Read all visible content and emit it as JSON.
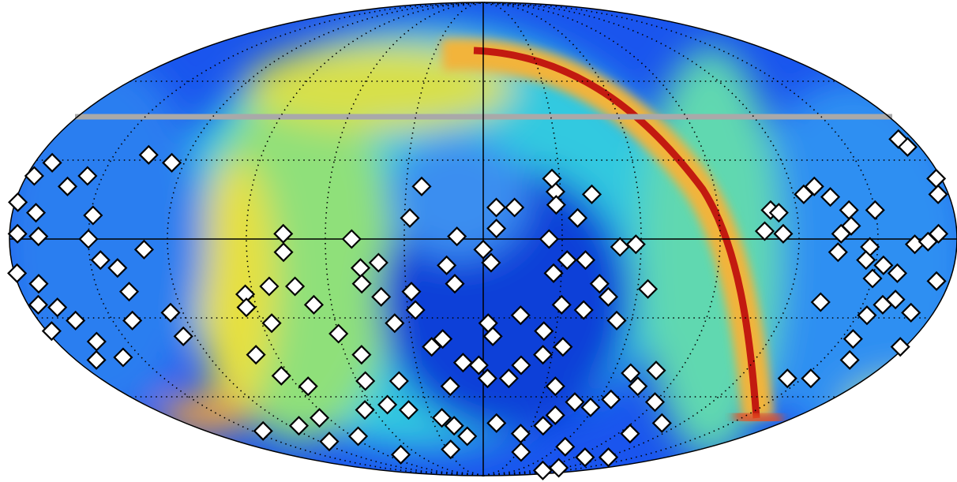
{
  "chart_data": {
    "type": "scatter",
    "x": [
      -173,
      -177,
      -179,
      -171,
      -177,
      -169,
      -179,
      -172,
      -176,
      -169,
      -178,
      -165,
      -156,
      -162,
      -149,
      -150,
      -146,
      -140,
      -138,
      -129,
      -136,
      -125,
      -142,
      -163,
      -171,
      -158,
      -125,
      -125,
      -93,
      -83,
      -73,
      -94,
      -86,
      -67,
      -76,
      -76,
      -50,
      -47,
      -40,
      -47,
      -40,
      -28,
      -36,
      -27,
      -60,
      -53,
      -99,
      -94,
      -85,
      -56,
      -65,
      -51,
      -40,
      -41,
      -95,
      -114,
      -143,
      -113,
      -86,
      -76,
      -24,
      -28,
      -10,
      -14,
      -11,
      0,
      5,
      5,
      3,
      -22,
      -17,
      -9,
      -2,
      2,
      4,
      2,
      12,
      17,
      -16,
      -24,
      -18,
      -11,
      -27,
      8,
      25,
      33,
      108,
      112,
      65,
      100,
      123,
      98,
      37,
      41,
      48,
      58,
      66,
      35,
      26,
      34,
      25,
      15,
      31,
      40,
      27,
      32,
      39,
      45,
      49,
      54,
      52,
      58,
      64,
      25,
      28,
      28,
      36,
      42,
      12,
      27,
      68,
      75,
      79,
      90,
      108,
      143,
      154,
      162,
      155,
      154,
      158,
      162,
      171,
      178,
      133,
      124,
      129,
      134,
      140,
      150,
      110,
      113,
      107,
      114,
      136,
      140,
      147,
      135,
      146,
      153,
      150,
      159,
      164,
      173,
      176,
      178,
      174,
      175,
      175,
      169
    ],
    "values": [
      29,
      24,
      14,
      10,
      2,
      1,
      -13,
      -17,
      -25,
      -26,
      -35,
      -31,
      24,
      20,
      9,
      0,
      -8,
      -11,
      -20,
      -4,
      32,
      29,
      -31,
      -39,
      -46,
      -45,
      -28,
      -37,
      -21,
      -18,
      -18,
      -26,
      -32,
      -25,
      2,
      -5,
      0,
      -11,
      -9,
      -17,
      -22,
      -20,
      -32,
      -27,
      -36,
      -44,
      -44,
      -52,
      -56,
      -54,
      -65,
      -63,
      -54,
      -65,
      -68,
      -71,
      -73,
      -77,
      -75,
      -82,
      20,
      8,
      1,
      -10,
      -17,
      -4,
      12,
      4,
      -9,
      -41,
      -38,
      -47,
      -48,
      -32,
      -37,
      -53,
      -53,
      -48,
      -56,
      -68,
      -71,
      -75,
      -80,
      -70,
      -74,
      -81,
      -88,
      -87,
      -79,
      -83,
      -83,
      -74,
      -71,
      -67,
      -62,
      -64,
      -61,
      -56,
      -44,
      -41,
      -35,
      -29,
      -25,
      -27,
      -13,
      -8,
      -8,
      -17,
      -22,
      -31,
      -3,
      -2,
      -19,
      0,
      18,
      13,
      8,
      17,
      12,
      23,
      -51,
      -56,
      -50,
      -62,
      -70,
      -53,
      -53,
      -46,
      -38,
      -29,
      -25,
      -23,
      -28,
      -41,
      -24,
      17,
      20,
      16,
      11,
      11,
      11,
      10,
      3,
      2,
      2,
      5,
      -3,
      -5,
      -8,
      -10,
      -15,
      -13,
      -2,
      2,
      17,
      23,
      38,
      35,
      -16,
      -1
    ],
    "color": "#ffffff",
    "xlim": [
      -180,
      180
    ],
    "ylim": [
      -90,
      90
    ],
    "xticks": [
      -150,
      -120,
      -90,
      -60,
      -30,
      0,
      30,
      60,
      90,
      120,
      150
    ],
    "yticks": [
      -60,
      -30,
      0,
      30,
      60
    ],
    "grid": true
  }
}
